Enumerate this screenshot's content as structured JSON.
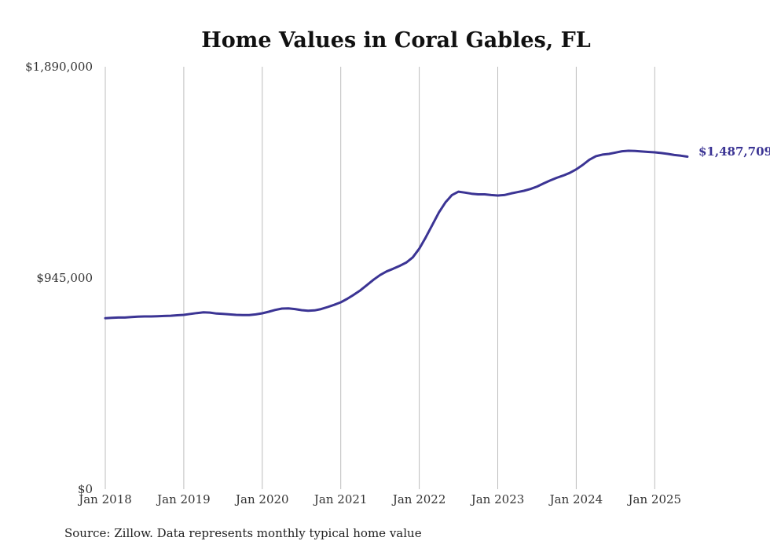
{
  "chart_data": {
    "type": "line",
    "title": "Home Values in Coral Gables, FL",
    "xlabel": "",
    "ylabel": "",
    "x_tick_labels": [
      "Jan 2018",
      "Jan 2019",
      "Jan 2020",
      "Jan 2021",
      "Jan 2022",
      "Jan 2023",
      "Jan 2024",
      "Jan 2025"
    ],
    "y_tick_labels": [
      "$0",
      "$945,000",
      "$1,890,000"
    ],
    "y_ticks": [
      0,
      945000,
      1890000
    ],
    "ylim": [
      0,
      1890000
    ],
    "x_range": [
      "2018-01",
      "2025-06"
    ],
    "grid": "vertical at each January",
    "end_label": "$1,487,709",
    "source": "Source: Zillow. Data represents monthly typical home value",
    "colors": {
      "line": "#3b3494",
      "grid": "#bdbdbd"
    },
    "series": [
      {
        "x": [
          "2018-01",
          "2018-02",
          "2018-03",
          "2018-04",
          "2018-05",
          "2018-06",
          "2018-07",
          "2018-08",
          "2018-09",
          "2018-10",
          "2018-11",
          "2018-12",
          "2019-01",
          "2019-02",
          "2019-03",
          "2019-04",
          "2019-05",
          "2019-06",
          "2019-07",
          "2019-08",
          "2019-09",
          "2019-10",
          "2019-11",
          "2019-12",
          "2020-01",
          "2020-02",
          "2020-03",
          "2020-04",
          "2020-05",
          "2020-06",
          "2020-07",
          "2020-08",
          "2020-09",
          "2020-10",
          "2020-11",
          "2020-12",
          "2021-01",
          "2021-02",
          "2021-03",
          "2021-04",
          "2021-05",
          "2021-06",
          "2021-07",
          "2021-08",
          "2021-09",
          "2021-10",
          "2021-11",
          "2021-12",
          "2022-01",
          "2022-02",
          "2022-03",
          "2022-04",
          "2022-05",
          "2022-06",
          "2022-07",
          "2022-08",
          "2022-09",
          "2022-10",
          "2022-11",
          "2022-12",
          "2023-01",
          "2023-02",
          "2023-03",
          "2023-04",
          "2023-05",
          "2023-06",
          "2023-07",
          "2023-08",
          "2023-09",
          "2023-10",
          "2023-11",
          "2023-12",
          "2024-01",
          "2024-02",
          "2024-03",
          "2024-04",
          "2024-05",
          "2024-06",
          "2024-07",
          "2024-08",
          "2024-09",
          "2024-10",
          "2024-11",
          "2024-12",
          "2025-01",
          "2025-02",
          "2025-03",
          "2025-04",
          "2025-05",
          "2025-06"
        ],
        "values": [
          765000,
          767000,
          768000,
          768000,
          770000,
          772000,
          773000,
          773000,
          774000,
          775000,
          776000,
          778000,
          780000,
          784000,
          788000,
          791000,
          790000,
          786000,
          784000,
          782000,
          780000,
          779000,
          779000,
          782000,
          787000,
          794000,
          802000,
          808000,
          809000,
          806000,
          801000,
          798000,
          800000,
          806000,
          815000,
          825000,
          836000,
          852000,
          870000,
          890000,
          913000,
          937000,
          958000,
          974000,
          986000,
          999000,
          1014000,
          1037000,
          1076000,
          1127000,
          1183000,
          1238000,
          1283000,
          1316000,
          1331000,
          1327000,
          1322000,
          1319000,
          1319000,
          1316000,
          1314000,
          1316000,
          1323000,
          1329000,
          1335000,
          1343000,
          1354000,
          1368000,
          1381000,
          1393000,
          1403000,
          1415000,
          1431000,
          1451000,
          1474000,
          1490000,
          1497000,
          1500000,
          1506000,
          1512000,
          1514000,
          1513000,
          1511000,
          1509000,
          1507000,
          1504000,
          1500000,
          1495000,
          1492000,
          1487709
        ]
      }
    ]
  }
}
